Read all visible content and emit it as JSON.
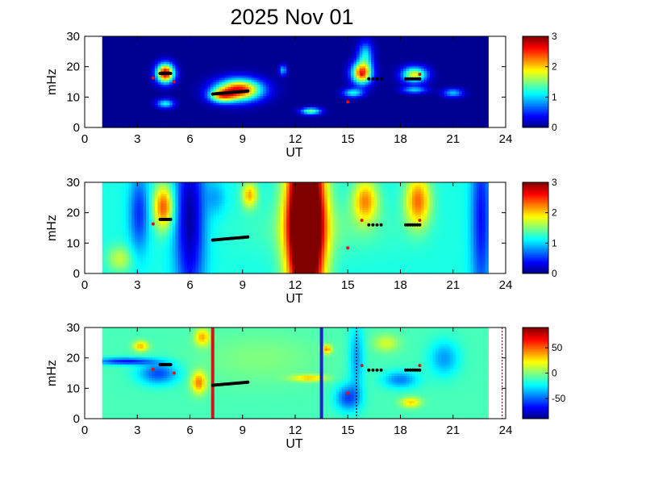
{
  "title": "2025 Nov 01",
  "chart_data": [
    {
      "type": "heatmap",
      "xlabel": "UT",
      "ylabel": "mHz",
      "xlim": [
        0,
        24
      ],
      "ylim": [
        0,
        30
      ],
      "x_ticks": [
        "0",
        "3",
        "6",
        "9",
        "12",
        "15",
        "18",
        "21",
        "24"
      ],
      "y_ticks": [
        "0",
        "10",
        "20",
        "30"
      ],
      "colorbar": {
        "colormap": "jet",
        "range": [
          0,
          3
        ],
        "ticks": [
          "0",
          "1",
          "2",
          "3"
        ]
      },
      "data_extent_x": [
        1,
        23
      ],
      "background_value": 0.05,
      "blobs": [
        {
          "x": 4.6,
          "y": 18,
          "sx": 0.35,
          "sy": 2.2,
          "v": 2.8
        },
        {
          "x": 4.6,
          "y": 8,
          "sx": 0.35,
          "sy": 1.0,
          "v": 1.1
        },
        {
          "x": 8.8,
          "y": 12.5,
          "sx": 0.9,
          "sy": 2.5,
          "v": 2.6
        },
        {
          "x": 7.8,
          "y": 10.5,
          "sx": 0.5,
          "sy": 1.5,
          "v": 1.5
        },
        {
          "x": 11.3,
          "y": 19,
          "sx": 0.15,
          "sy": 1.2,
          "v": 0.9
        },
        {
          "x": 12.9,
          "y": 5.5,
          "sx": 0.4,
          "sy": 0.8,
          "v": 1.4
        },
        {
          "x": 15.8,
          "y": 18,
          "sx": 0.4,
          "sy": 2.5,
          "v": 2.4
        },
        {
          "x": 15.3,
          "y": 11.5,
          "sx": 0.4,
          "sy": 1.0,
          "v": 1.1
        },
        {
          "x": 16.0,
          "y": 24,
          "sx": 0.3,
          "sy": 3.0,
          "v": 1.0
        },
        {
          "x": 18.8,
          "y": 17.5,
          "sx": 0.5,
          "sy": 1.8,
          "v": 1.8
        },
        {
          "x": 18.8,
          "y": 12.5,
          "sx": 0.5,
          "sy": 0.8,
          "v": 0.9
        },
        {
          "x": 21.0,
          "y": 11.5,
          "sx": 0.4,
          "sy": 1.0,
          "v": 0.9
        }
      ],
      "black_markers": [
        {
          "x_start": 4.3,
          "x_end": 4.9,
          "y_start": 17.8,
          "y_end": 17.8,
          "count": 8
        },
        {
          "x_start": 7.3,
          "x_end": 9.3,
          "y_start": 11.0,
          "y_end": 12.0,
          "count": 22
        },
        {
          "x_start": 16.2,
          "x_end": 16.9,
          "y_start": 16.0,
          "y_end": 16.0,
          "count": 4
        },
        {
          "x_start": 18.3,
          "x_end": 19.1,
          "y_start": 16.0,
          "y_end": 16.0,
          "count": 7
        }
      ],
      "red_markers": [
        [
          3.9,
          16.3
        ],
        [
          5.1,
          15.0
        ],
        [
          15.0,
          8.4
        ],
        [
          15.8,
          17.5
        ],
        [
          19.1,
          17.5
        ]
      ]
    },
    {
      "type": "heatmap",
      "xlabel": "UT",
      "ylabel": "mHz",
      "xlim": [
        0,
        24
      ],
      "ylim": [
        0,
        30
      ],
      "x_ticks": [
        "0",
        "3",
        "6",
        "9",
        "12",
        "15",
        "18",
        "21",
        "24"
      ],
      "y_ticks": [
        "0",
        "10",
        "20",
        "30"
      ],
      "colorbar": {
        "colormap": "jet",
        "range": [
          0,
          3
        ],
        "ticks": [
          "0",
          "1",
          "2",
          "3"
        ]
      },
      "data_extent_x": [
        1,
        23
      ],
      "background_value": 1.2,
      "blobs": [
        {
          "x": 12.6,
          "y": 17,
          "sx": 0.7,
          "sy": 20,
          "v": 3.5
        },
        {
          "x": 4.5,
          "y": 22,
          "sx": 0.4,
          "sy": 5,
          "v": 1.2
        },
        {
          "x": 9.4,
          "y": 26,
          "sx": 0.3,
          "sy": 3,
          "v": 0.9
        },
        {
          "x": 16.0,
          "y": 24,
          "sx": 0.5,
          "sy": 5,
          "v": 1.0
        },
        {
          "x": 19.0,
          "y": 24,
          "sx": 0.5,
          "sy": 6,
          "v": 1.1
        },
        {
          "x": 2.0,
          "y": 5,
          "sx": 0.5,
          "sy": 3,
          "v": 0.5
        },
        {
          "x": 6.0,
          "y": 18,
          "sx": 0.6,
          "sy": 20,
          "v": -1.1
        },
        {
          "x": 3.1,
          "y": 20,
          "sx": 0.4,
          "sy": 9,
          "v": -0.7
        },
        {
          "x": 22.6,
          "y": 18,
          "sx": 0.4,
          "sy": 20,
          "v": -0.8
        },
        {
          "x": 7.5,
          "y": 25,
          "sx": 0.4,
          "sy": 4,
          "v": -0.3
        },
        {
          "x": 13.5,
          "y": 15,
          "sx": 3.0,
          "sy": 6,
          "v": 0.2
        }
      ],
      "black_markers": [
        {
          "x_start": 4.3,
          "x_end": 4.9,
          "y_start": 17.8,
          "y_end": 17.8,
          "count": 8
        },
        {
          "x_start": 7.3,
          "x_end": 9.3,
          "y_start": 11.0,
          "y_end": 12.0,
          "count": 22
        },
        {
          "x_start": 16.2,
          "x_end": 16.9,
          "y_start": 16.0,
          "y_end": 16.0,
          "count": 4
        },
        {
          "x_start": 18.3,
          "x_end": 19.1,
          "y_start": 16.0,
          "y_end": 16.0,
          "count": 7
        }
      ],
      "red_markers": [
        [
          3.9,
          16.3
        ],
        [
          15.0,
          8.4
        ],
        [
          15.8,
          17.5
        ],
        [
          19.1,
          17.5
        ]
      ]
    },
    {
      "type": "heatmap",
      "xlabel": "UT",
      "ylabel": "mHz",
      "xlim": [
        0,
        24
      ],
      "ylim": [
        0,
        30
      ],
      "x_ticks": [
        "0",
        "3",
        "6",
        "9",
        "12",
        "15",
        "18",
        "21",
        "24"
      ],
      "y_ticks": [
        "0",
        "10",
        "20",
        "30"
      ],
      "colorbar": {
        "colormap": "jet",
        "range": [
          -90,
          90
        ],
        "ticks": [
          "50",
          "0",
          "-50"
        ],
        "tick_values": [
          50,
          0,
          -50
        ]
      },
      "data_extent_x": [
        1,
        23
      ],
      "background_value": -10,
      "blobs": [
        {
          "x": 3.2,
          "y": 24,
          "sx": 0.3,
          "sy": 1.2,
          "v": 45
        },
        {
          "x": 6.5,
          "y": 12,
          "sx": 0.3,
          "sy": 2.5,
          "v": 55
        },
        {
          "x": 6.7,
          "y": 27,
          "sx": 0.3,
          "sy": 2.0,
          "v": 45
        },
        {
          "x": 12.8,
          "y": 13.5,
          "sx": 0.7,
          "sy": 0.8,
          "v": 40
        },
        {
          "x": 13.8,
          "y": 23,
          "sx": 0.2,
          "sy": 1.0,
          "v": 50
        },
        {
          "x": 18.6,
          "y": 5.5,
          "sx": 0.4,
          "sy": 1.2,
          "v": 40
        },
        {
          "x": 17.2,
          "y": 25,
          "sx": 0.5,
          "sy": 2.0,
          "v": 25
        },
        {
          "x": 2.3,
          "y": 19,
          "sx": 1.2,
          "sy": 0.8,
          "v": -55
        },
        {
          "x": 4.2,
          "y": 15,
          "sx": 0.8,
          "sy": 2.5,
          "v": -45
        },
        {
          "x": 15.0,
          "y": 7,
          "sx": 0.5,
          "sy": 3.0,
          "v": -45
        },
        {
          "x": 15.5,
          "y": 20,
          "sx": 0.3,
          "sy": 8.0,
          "v": -30
        },
        {
          "x": 18.0,
          "y": 13,
          "sx": 0.7,
          "sy": 2.0,
          "v": -35
        },
        {
          "x": 20.5,
          "y": 20,
          "sx": 0.6,
          "sy": 4.0,
          "v": -30
        },
        {
          "x": 10.0,
          "y": 20,
          "sx": 2.5,
          "sy": 6.0,
          "v": 10
        }
      ],
      "vertical_lines": [
        {
          "x": 7.3,
          "color": "#cc1a1a",
          "style": "solid"
        },
        {
          "x": 13.5,
          "color": "#1a22cc",
          "style": "solid"
        },
        {
          "x": 15.5,
          "color": "#000000",
          "style": "dotted"
        },
        {
          "x": 23.8,
          "color": "#8b2a2a",
          "style": "dotted"
        }
      ],
      "black_markers": [
        {
          "x_start": 4.3,
          "x_end": 4.9,
          "y_start": 17.8,
          "y_end": 17.8,
          "count": 8
        },
        {
          "x_start": 7.3,
          "x_end": 9.3,
          "y_start": 11.0,
          "y_end": 12.0,
          "count": 22
        },
        {
          "x_start": 16.2,
          "x_end": 16.9,
          "y_start": 16.0,
          "y_end": 16.0,
          "count": 4
        },
        {
          "x_start": 18.3,
          "x_end": 19.1,
          "y_start": 16.0,
          "y_end": 16.0,
          "count": 7
        }
      ],
      "red_markers": [
        [
          3.9,
          16.3
        ],
        [
          5.1,
          15.0
        ],
        [
          15.0,
          8.4
        ],
        [
          15.8,
          17.5
        ],
        [
          19.1,
          17.5
        ]
      ]
    }
  ]
}
